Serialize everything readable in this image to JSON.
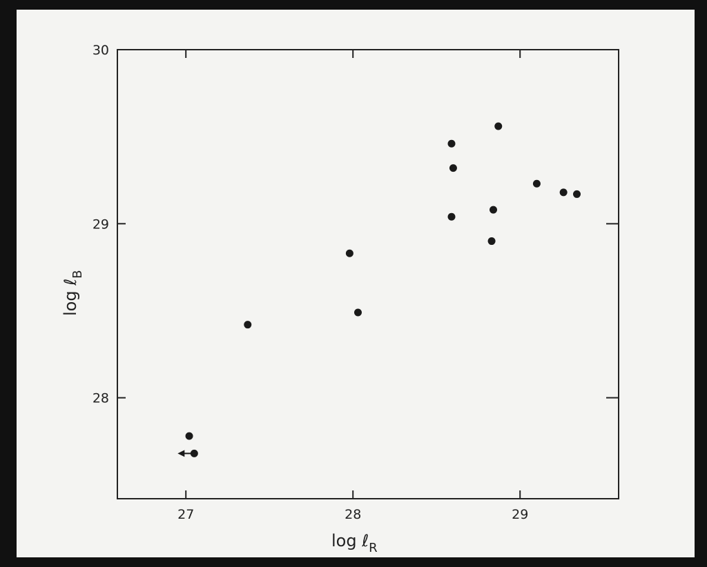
{
  "chart_data": {
    "type": "scatter",
    "title": "",
    "xlabel": {
      "text": "log ℓ",
      "subscript": "R"
    },
    "ylabel": {
      "text": "log ℓ",
      "subscript": "B"
    },
    "xlim": [
      26.59,
      29.59
    ],
    "ylim": [
      27.42,
      30.0
    ],
    "xticks": [
      27,
      28,
      29
    ],
    "yticks": [
      28,
      29,
      30
    ],
    "xtick_labels": [
      "27",
      "28",
      "29"
    ],
    "ytick_labels": [
      "28",
      "29",
      "30"
    ],
    "grid": false,
    "marker_color": "#1a1a1a",
    "points": [
      {
        "x": 27.02,
        "y": 27.78
      },
      {
        "x": 27.05,
        "y": 27.68,
        "upper_limit_x": true
      },
      {
        "x": 27.37,
        "y": 28.42
      },
      {
        "x": 27.98,
        "y": 28.83
      },
      {
        "x": 28.03,
        "y": 28.49
      },
      {
        "x": 28.59,
        "y": 29.46
      },
      {
        "x": 28.6,
        "y": 29.32
      },
      {
        "x": 28.59,
        "y": 29.04
      },
      {
        "x": 28.87,
        "y": 29.56
      },
      {
        "x": 28.84,
        "y": 29.08
      },
      {
        "x": 28.83,
        "y": 28.9
      },
      {
        "x": 29.1,
        "y": 29.23
      },
      {
        "x": 29.26,
        "y": 29.18
      },
      {
        "x": 29.34,
        "y": 29.17
      }
    ]
  }
}
